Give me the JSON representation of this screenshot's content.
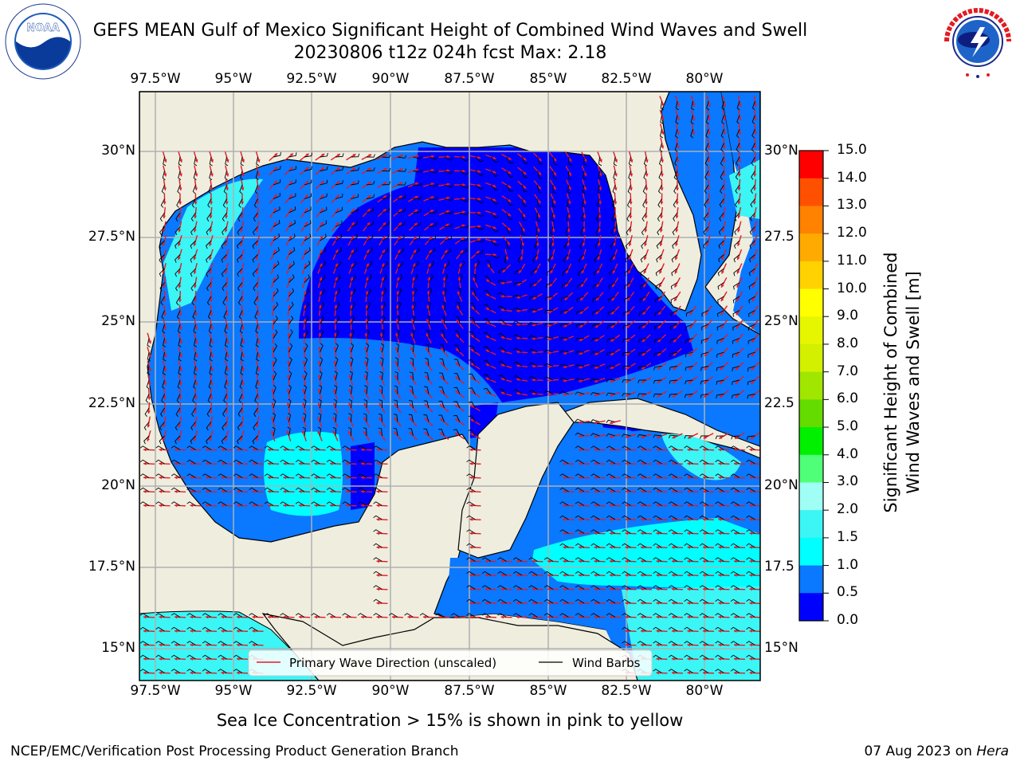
{
  "title": {
    "line1": "GEFS MEAN Gulf of Mexico Significant Height of Combined Wind Waves and Swell",
    "line2": "20230806 t12z 024h fcst   Max: 2.18"
  },
  "logos": {
    "noaa": {
      "text": "NOAA",
      "ring_text": "NATIONAL OCEANIC AND ATMOSPHERIC ADMINISTRATION · U.S. DEPARTMENT OF COMMERCE"
    },
    "nws": {
      "ring_text": "NATIONAL WEATHER SERVICE"
    }
  },
  "map": {
    "lon_labels": [
      "97.5°W",
      "95°W",
      "92.5°W",
      "90°W",
      "87.5°W",
      "85°W",
      "82.5°W",
      "80°W"
    ],
    "lon_values": [
      -97.5,
      -95,
      -92.5,
      -90,
      -87.5,
      -85,
      -82.5,
      -80
    ],
    "lat_labels_left": [
      "30°N",
      "27.5°N",
      "25°N",
      "22.5°N",
      "20°N",
      "17.5°N",
      "15°N"
    ],
    "lat_labels_right": [
      "30°N",
      "27.5",
      "25°N",
      "22.5",
      "20°N",
      "17.5",
      "15°N"
    ],
    "lat_values": [
      30,
      27.5,
      25,
      22.5,
      20,
      17.5,
      15
    ],
    "extent": {
      "lon_min": -98,
      "lon_max": -78.2,
      "lat_min": 14,
      "lat_max": 31.8
    },
    "land_color": "#efedde",
    "grid_color": "#b0b0b0",
    "legend": {
      "wave_direction": "Primary Wave Direction (unscaled)",
      "wind_barbs": "Wind Barbs"
    }
  },
  "colorbar": {
    "label_line1": "Significant Height of Combined",
    "label_line2": "Wind Waves and Swell [m]",
    "ticks": [
      "15.0",
      "14.0",
      "13.0",
      "12.0",
      "11.0",
      "10.0",
      "9.0",
      "8.0",
      "7.0",
      "6.0",
      "5.0",
      "4.0",
      "3.0",
      "2.0",
      "1.5",
      "1.0",
      "0.5",
      "0.0"
    ],
    "levels": [
      {
        "from": 0.0,
        "to": 0.5,
        "color": "#0000ff"
      },
      {
        "from": 0.5,
        "to": 1.0,
        "color": "#0a78ff"
      },
      {
        "from": 1.0,
        "to": 1.5,
        "color": "#00ffff"
      },
      {
        "from": 1.5,
        "to": 2.0,
        "color": "#3cf5f5"
      },
      {
        "from": 2.0,
        "to": 3.0,
        "color": "#a0fff5"
      },
      {
        "from": 3.0,
        "to": 4.0,
        "color": "#50ff78"
      },
      {
        "from": 4.0,
        "to": 5.0,
        "color": "#00f000"
      },
      {
        "from": 5.0,
        "to": 6.0,
        "color": "#64dc00"
      },
      {
        "from": 6.0,
        "to": 7.0,
        "color": "#a0e600"
      },
      {
        "from": 7.0,
        "to": 8.0,
        "color": "#d2f000"
      },
      {
        "from": 8.0,
        "to": 9.0,
        "color": "#e6f500"
      },
      {
        "from": 9.0,
        "to": 10.0,
        "color": "#ffff00"
      },
      {
        "from": 10.0,
        "to": 11.0,
        "color": "#ffd200"
      },
      {
        "from": 11.0,
        "to": 12.0,
        "color": "#ffaa00"
      },
      {
        "from": 12.0,
        "to": 13.0,
        "color": "#ff8200"
      },
      {
        "from": 13.0,
        "to": 14.0,
        "color": "#ff5000"
      },
      {
        "from": 14.0,
        "to": 15.0,
        "color": "#ff0000"
      }
    ]
  },
  "subtitle": "Sea Ice Concentration > 15% is shown in pink to yellow",
  "footer": {
    "left": "NCEP/EMC/Verification Post Processing Product Generation Branch",
    "date": "07 Aug 2023 on ",
    "machine": "Hera"
  }
}
